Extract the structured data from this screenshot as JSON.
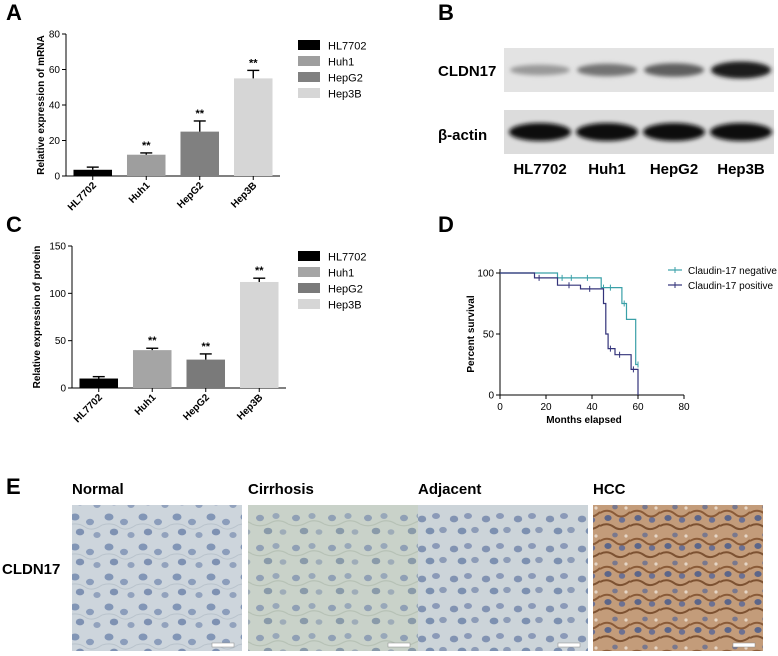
{
  "panels": {
    "A": "A",
    "B": "B",
    "C": "C",
    "D": "D",
    "E": "E"
  },
  "chart_data": [
    {
      "id": "A",
      "type": "bar",
      "ylabel": "Relative expression of mRNA",
      "ylim": [
        0,
        80
      ],
      "yticks": [
        0,
        20,
        40,
        60,
        80
      ],
      "categories": [
        "HL7702",
        "Huh1",
        "HepG2",
        "Hep3B"
      ],
      "values": [
        3.5,
        12,
        25,
        55
      ],
      "errors": [
        1.5,
        1,
        6,
        4.5
      ],
      "significance": [
        "",
        "**",
        "**",
        "**"
      ],
      "colors": [
        "#000000",
        "#9e9e9e",
        "#808080",
        "#d6d6d6"
      ],
      "legend": [
        "HL7702",
        "Huh1",
        "HepG2",
        "Hep3B"
      ],
      "legend_position": "right"
    },
    {
      "id": "C",
      "type": "bar",
      "ylabel": "Relative expression of protein",
      "ylim": [
        0,
        150
      ],
      "yticks": [
        0,
        50,
        100,
        150
      ],
      "categories": [
        "HL7702",
        "Huh1",
        "HepG2",
        "Hep3B"
      ],
      "values": [
        10,
        40,
        30,
        112
      ],
      "errors": [
        2,
        2,
        6,
        4
      ],
      "significance": [
        "",
        "**",
        "**",
        "**"
      ],
      "colors": [
        "#000000",
        "#a5a5a5",
        "#7a7a7a",
        "#d6d6d6"
      ],
      "legend": [
        "HL7702",
        "Huh1",
        "HepG2",
        "Hep3B"
      ],
      "legend_position": "right"
    },
    {
      "id": "D",
      "type": "line",
      "subtype": "kaplan-meier",
      "xlabel": "Months elapsed",
      "ylabel": "Percent survival",
      "xlim": [
        0,
        80
      ],
      "ylim": [
        0,
        100
      ],
      "xticks": [
        0,
        20,
        40,
        60,
        80
      ],
      "yticks": [
        0,
        50,
        100
      ],
      "legend_position": "top-right",
      "series": [
        {
          "name": "Claudin-17 negative",
          "color": "#3aa0a8",
          "steps": [
            [
              0,
              100
            ],
            [
              25,
              100
            ],
            [
              25,
              96
            ],
            [
              44,
              96
            ],
            [
              44,
              88
            ],
            [
              53,
              88
            ],
            [
              53,
              75
            ],
            [
              55,
              75
            ],
            [
              55,
              62
            ],
            [
              59,
              62
            ],
            [
              59,
              25
            ],
            [
              60,
              25
            ]
          ],
          "censor": [
            [
              27,
              96
            ],
            [
              31,
              96
            ],
            [
              38,
              96
            ],
            [
              45,
              88
            ],
            [
              48,
              88
            ],
            [
              54,
              75
            ],
            [
              60,
              25
            ]
          ]
        },
        {
          "name": "Claudin-17 positive",
          "color": "#33337a",
          "steps": [
            [
              0,
              100
            ],
            [
              15,
              100
            ],
            [
              15,
              96
            ],
            [
              25,
              96
            ],
            [
              25,
              90
            ],
            [
              35,
              90
            ],
            [
              35,
              87
            ],
            [
              45,
              87
            ],
            [
              45,
              75
            ],
            [
              46,
              75
            ],
            [
              46,
              50
            ],
            [
              47,
              50
            ],
            [
              47,
              38
            ],
            [
              50,
              38
            ],
            [
              50,
              33
            ],
            [
              57,
              33
            ],
            [
              57,
              21
            ],
            [
              60,
              21
            ],
            [
              60,
              0
            ]
          ],
          "censor": [
            [
              17,
              96
            ],
            [
              30,
              90
            ],
            [
              39,
              87
            ],
            [
              48,
              38
            ],
            [
              52,
              33
            ],
            [
              58,
              21
            ]
          ]
        }
      ]
    }
  ],
  "blot": {
    "protein": "CLDN17",
    "control": "β-actin",
    "lanes": [
      "HL7702",
      "Huh1",
      "HepG2",
      "Hep3B"
    ],
    "cldn17_intensity": [
      0.25,
      0.45,
      0.55,
      0.9
    ],
    "actin_intensity": [
      1,
      1,
      1,
      1
    ]
  },
  "histology": {
    "row_label": "CLDN17",
    "columns": [
      "Normal",
      "Cirrhosis",
      "Adjacent",
      "HCC"
    ]
  }
}
